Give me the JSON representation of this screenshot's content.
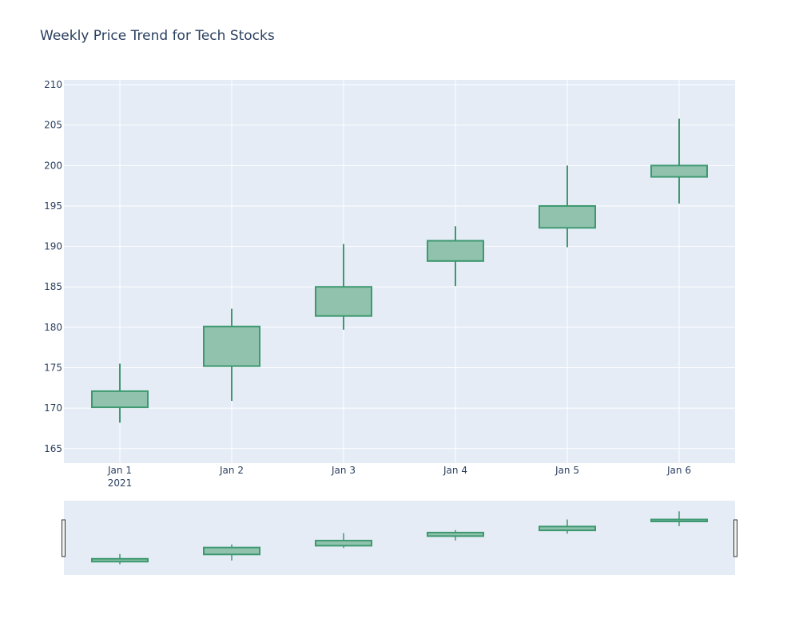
{
  "chart_data": {
    "type": "candlestick",
    "title": "Weekly Price Trend for Tech Stocks",
    "xlabel": "",
    "ylabel": "",
    "x_tick_labels": [
      "Jan 1",
      "Jan 2",
      "Jan 3",
      "Jan 4",
      "Jan 5",
      "Jan 6"
    ],
    "x_year_label": "2021",
    "y_ticks": [
      165,
      170,
      175,
      180,
      185,
      190,
      195,
      200,
      205,
      210
    ],
    "ylim": [
      163.2,
      210.6
    ],
    "grid": true,
    "range_slider": true,
    "increasing_color": "#3D9970",
    "increasing_fill": "#91C2AD",
    "plot_bg": "#E5ECF6",
    "grid_color": "#ffffff",
    "text_color": "#2a3f5f",
    "series": [
      {
        "x": [
          "2021-01-01",
          "2021-01-02",
          "2021-01-03",
          "2021-01-04",
          "2021-01-05",
          "2021-01-06"
        ],
        "open": [
          170.1,
          175.2,
          181.4,
          188.2,
          192.3,
          198.6
        ],
        "high": [
          175.5,
          182.3,
          190.3,
          192.5,
          200.0,
          205.8
        ],
        "low": [
          168.2,
          170.9,
          179.7,
          185.1,
          189.9,
          195.3
        ],
        "close": [
          172.1,
          180.1,
          185.0,
          190.7,
          195.0,
          200.0
        ]
      }
    ]
  }
}
